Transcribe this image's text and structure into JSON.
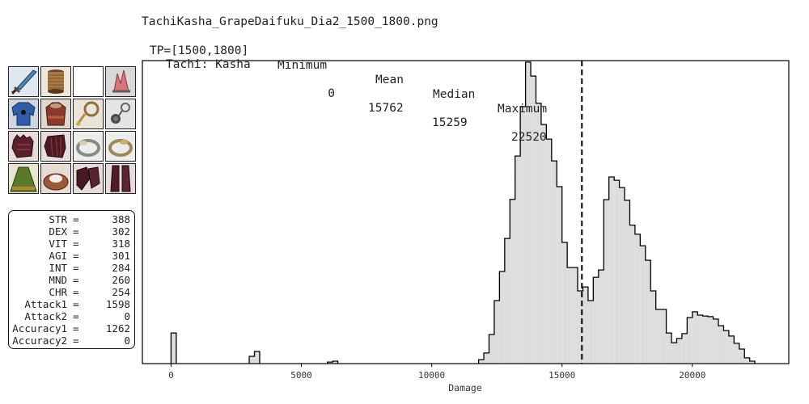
{
  "header": {
    "filename": "TachiKasha_GrapeDaifuku_Dia2_1500_1800.png",
    "tp_label": "TP=[1500,1800]",
    "col_min": "Minimum",
    "col_mean": "Mean",
    "col_median": "Median",
    "col_max": "Maximum",
    "ws_label": "Tachi: Kasha",
    "min_value": "0",
    "mean_value": "15762",
    "median_value": "15259",
    "max_value": "22520"
  },
  "gear": {
    "slots": [
      {
        "icon": "sword-icon"
      },
      {
        "icon": "ammo-spool-icon"
      },
      {
        "icon": "empty-slot-icon"
      },
      {
        "icon": "crystal-head-icon"
      },
      {
        "icon": "body-armor-icon"
      },
      {
        "icon": "hands-armor-icon"
      },
      {
        "icon": "neck-gorget-icon"
      },
      {
        "icon": "earring-icon"
      },
      {
        "icon": "gloves-icon"
      },
      {
        "icon": "gloves-icon"
      },
      {
        "icon": "ring-icon"
      },
      {
        "icon": "ring-icon"
      },
      {
        "icon": "cape-icon"
      },
      {
        "icon": "belt-icon"
      },
      {
        "icon": "legs-armor-icon"
      },
      {
        "icon": "feet-armor-icon"
      }
    ]
  },
  "stats": [
    {
      "label": "STR",
      "value": "388"
    },
    {
      "label": "DEX",
      "value": "302"
    },
    {
      "label": "VIT",
      "value": "318"
    },
    {
      "label": "AGI",
      "value": "301"
    },
    {
      "label": "INT",
      "value": "284"
    },
    {
      "label": "MND",
      "value": "260"
    },
    {
      "label": "CHR",
      "value": "254"
    },
    {
      "label": "Attack1",
      "value": "1598"
    },
    {
      "label": "Attack2",
      "value": "0"
    },
    {
      "label": "Accuracy1",
      "value": "1262"
    },
    {
      "label": "Accuracy2",
      "value": "0"
    }
  ],
  "chart_data": {
    "type": "histogram",
    "xlabel": "Damage",
    "xlim": [
      -1100,
      23700
    ],
    "xticks": [
      0,
      5000,
      10000,
      15000,
      20000
    ],
    "ylim": [
      0,
      1
    ],
    "grid": false,
    "bin_width": 200,
    "bins": [
      {
        "x": 0,
        "y": 0.101
      },
      {
        "x": 3000,
        "y": 0.024
      },
      {
        "x": 3200,
        "y": 0.04
      },
      {
        "x": 6000,
        "y": 0.005
      },
      {
        "x": 6200,
        "y": 0.008
      },
      {
        "x": 11800,
        "y": 0.013
      },
      {
        "x": 12000,
        "y": 0.035
      },
      {
        "x": 12200,
        "y": 0.096
      },
      {
        "x": 12400,
        "y": 0.208
      },
      {
        "x": 12600,
        "y": 0.304
      },
      {
        "x": 12800,
        "y": 0.413
      },
      {
        "x": 13000,
        "y": 0.542
      },
      {
        "x": 13200,
        "y": 0.685
      },
      {
        "x": 13400,
        "y": 0.848
      },
      {
        "x": 13600,
        "y": 0.995
      },
      {
        "x": 13800,
        "y": 0.949
      },
      {
        "x": 14000,
        "y": 0.859
      },
      {
        "x": 14200,
        "y": 0.789
      },
      {
        "x": 14400,
        "y": 0.741
      },
      {
        "x": 14600,
        "y": 0.669
      },
      {
        "x": 14800,
        "y": 0.584
      },
      {
        "x": 15000,
        "y": 0.4
      },
      {
        "x": 15200,
        "y": 0.317
      },
      {
        "x": 15400,
        "y": 0.317
      },
      {
        "x": 15600,
        "y": 0.24
      },
      {
        "x": 15800,
        "y": 0.253
      },
      {
        "x": 16000,
        "y": 0.208
      },
      {
        "x": 16200,
        "y": 0.285
      },
      {
        "x": 16400,
        "y": 0.309
      },
      {
        "x": 16600,
        "y": 0.541
      },
      {
        "x": 16800,
        "y": 0.616
      },
      {
        "x": 17000,
        "y": 0.605
      },
      {
        "x": 17200,
        "y": 0.581
      },
      {
        "x": 17400,
        "y": 0.539
      },
      {
        "x": 17600,
        "y": 0.457
      },
      {
        "x": 17800,
        "y": 0.427
      },
      {
        "x": 18000,
        "y": 0.389
      },
      {
        "x": 18200,
        "y": 0.341
      },
      {
        "x": 18400,
        "y": 0.24
      },
      {
        "x": 18600,
        "y": 0.179
      },
      {
        "x": 18800,
        "y": 0.179
      },
      {
        "x": 19000,
        "y": 0.101
      },
      {
        "x": 19200,
        "y": 0.069
      },
      {
        "x": 19400,
        "y": 0.083
      },
      {
        "x": 19600,
        "y": 0.099
      },
      {
        "x": 19800,
        "y": 0.152
      },
      {
        "x": 20000,
        "y": 0.171
      },
      {
        "x": 20200,
        "y": 0.16
      },
      {
        "x": 20400,
        "y": 0.157
      },
      {
        "x": 20600,
        "y": 0.155
      },
      {
        "x": 20800,
        "y": 0.147
      },
      {
        "x": 21000,
        "y": 0.125
      },
      {
        "x": 21200,
        "y": 0.109
      },
      {
        "x": 21400,
        "y": 0.091
      },
      {
        "x": 21600,
        "y": 0.067
      },
      {
        "x": 21800,
        "y": 0.048
      },
      {
        "x": 22000,
        "y": 0.019
      },
      {
        "x": 22200,
        "y": 0.008
      }
    ],
    "mean_line": 15762,
    "fill_color": "#dddddd",
    "line_color": "#000000"
  }
}
